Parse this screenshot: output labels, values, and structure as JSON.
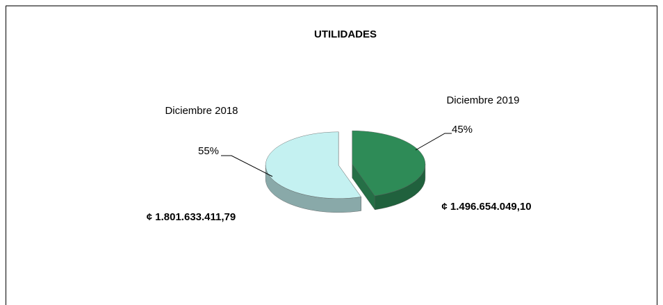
{
  "chart_data": {
    "type": "pie3d",
    "title": "UTILIDADES",
    "categories": [
      "Diciembre 2018",
      "Diciembre 2019"
    ],
    "values": [
      55,
      45
    ],
    "value_labels": [
      "55%",
      "45%"
    ],
    "amounts": [
      "¢ 1.801.633.411,79",
      "¢ 1.496.654.049,10"
    ],
    "colors": [
      "#c4f1f1",
      "#2e8b57"
    ]
  }
}
